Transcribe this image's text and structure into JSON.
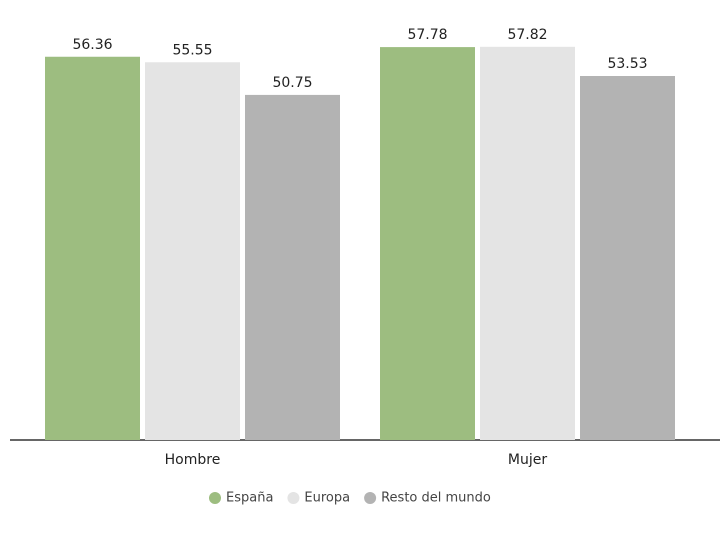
{
  "chart_data": {
    "type": "bar",
    "categories": [
      "Hombre",
      "Mujer"
    ],
    "series": [
      {
        "name": "España",
        "color": "#9dbd80",
        "values": [
          56.36,
          57.78
        ]
      },
      {
        "name": "Europa",
        "color": "#e4e4e4",
        "values": [
          55.55,
          57.82
        ]
      },
      {
        "name": "Resto del mundo",
        "color": "#b3b3b3",
        "values": [
          50.75,
          53.53
        ]
      }
    ],
    "ylim": [
      0,
      60
    ]
  }
}
